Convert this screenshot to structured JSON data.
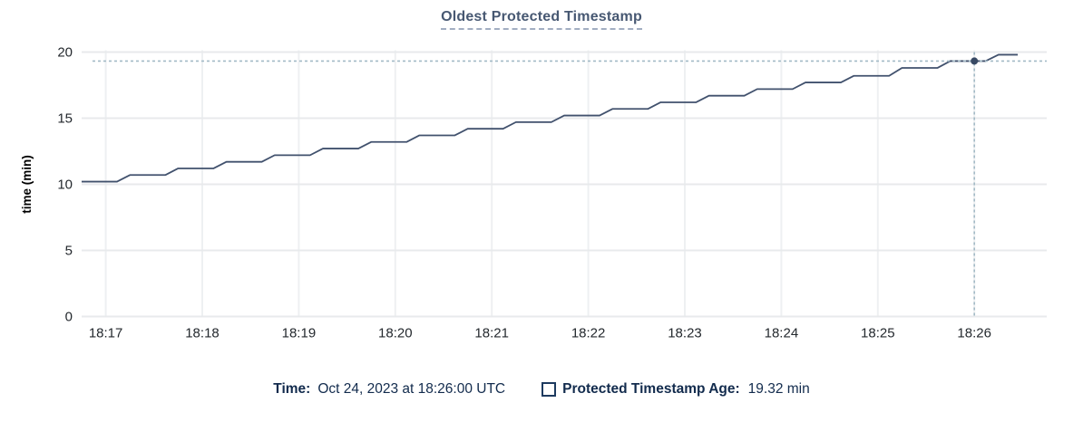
{
  "title": {
    "text": "Oldest Protected Timestamp"
  },
  "footer": {
    "time_label": "Time:",
    "time_value": "Oct 24, 2023 at 18:26:00 UTC",
    "series_label": "Protected Timestamp Age:",
    "series_value": "19.32 min"
  },
  "colors": {
    "title_text": "#475872",
    "line": "#41516d",
    "marker": "#384964",
    "crosshair": "#a3bac6",
    "grid_horizontal": "#e8eaec",
    "grid_vertical": "#eef0f2",
    "axis_text": "#24292e",
    "axis_title_text": "#000000",
    "legend_text": "#122b4d"
  },
  "chart_data": {
    "type": "line",
    "title": "Oldest Protected Timestamp",
    "xlabel": "",
    "ylabel": "time (min)",
    "ylim": [
      0,
      20
    ],
    "y_ticks": [
      0,
      5,
      10,
      15,
      20
    ],
    "x_tick_labels": [
      "18:17",
      "18:18",
      "18:19",
      "18:20",
      "18:21",
      "18:22",
      "18:23",
      "18:24",
      "18:25",
      "18:26"
    ],
    "x_tick_seconds": [
      15,
      75,
      135,
      195,
      255,
      315,
      375,
      435,
      495,
      555
    ],
    "x_domain_seconds": [
      0,
      600
    ],
    "x_unit": "seconds from chart window start (18:16:45 UTC)",
    "y_unit": "min",
    "grid": true,
    "legend_position": "bottom",
    "series": [
      {
        "name": "Protected Timestamp Age",
        "unit": "min",
        "points": [
          [
            0,
            10.2
          ],
          [
            22,
            10.2
          ],
          [
            30,
            10.7
          ],
          [
            52,
            10.7
          ],
          [
            60,
            11.2
          ],
          [
            82,
            11.2
          ],
          [
            90,
            11.7
          ],
          [
            112,
            11.7
          ],
          [
            120,
            12.2
          ],
          [
            142,
            12.2
          ],
          [
            150,
            12.7
          ],
          [
            172,
            12.7
          ],
          [
            180,
            13.2
          ],
          [
            202,
            13.2
          ],
          [
            210,
            13.7
          ],
          [
            232,
            13.7
          ],
          [
            240,
            14.2
          ],
          [
            262,
            14.2
          ],
          [
            270,
            14.7
          ],
          [
            292,
            14.7
          ],
          [
            300,
            15.2
          ],
          [
            322,
            15.2
          ],
          [
            330,
            15.7
          ],
          [
            352,
            15.7
          ],
          [
            360,
            16.2
          ],
          [
            382,
            16.2
          ],
          [
            390,
            16.7
          ],
          [
            412,
            16.7
          ],
          [
            420,
            17.2
          ],
          [
            442,
            17.2
          ],
          [
            450,
            17.7
          ],
          [
            472,
            17.7
          ],
          [
            480,
            18.2
          ],
          [
            502,
            18.2
          ],
          [
            510,
            18.8
          ],
          [
            532,
            18.8
          ],
          [
            540,
            19.32
          ],
          [
            562,
            19.32
          ],
          [
            570,
            19.8
          ],
          [
            582,
            19.8
          ]
        ]
      }
    ],
    "crosshair": {
      "x_seconds": 555,
      "time_label": "18:26:00",
      "value": 19.32
    }
  }
}
